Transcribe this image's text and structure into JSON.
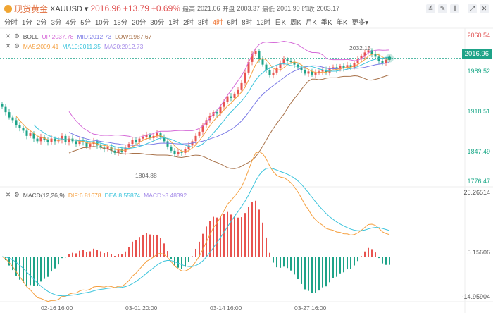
{
  "header": {
    "name": "现货黄金",
    "symbol": "XAUUSD",
    "price": "2016.96",
    "change": "+13.79",
    "change_pct": "+0.69%",
    "high_label": "最高",
    "high": "2021.06",
    "open_label": "开盘",
    "open": "2003.37",
    "low_label": "最低",
    "low": "2001.90",
    "prev_label": "昨收",
    "prev": "2003.17"
  },
  "periods": [
    "分时",
    "1分",
    "2分",
    "3分",
    "4分",
    "5分",
    "10分",
    "15分",
    "20分",
    "30分",
    "1时",
    "2时",
    "3时",
    "4时",
    "6时",
    "8时",
    "12时",
    "日K",
    "周K",
    "月K",
    "季K",
    "年K",
    "更多"
  ],
  "active_period": "4时",
  "toolbar": [
    "line-tool-icon",
    "draw-icon",
    "candle-icon",
    "expand-icon",
    "close-icon"
  ],
  "boll": {
    "label": "BOLL",
    "up": "UP:2037.78",
    "mid": "MID:2012.73",
    "low": "LOW:1987.67"
  },
  "ma": {
    "ma5": "MA5:2009.41",
    "ma10": "MA10:2011.35",
    "ma20": "MA20:2012.73"
  },
  "macd": {
    "label": "MACD(12,26,9)",
    "dif": "DIF:6.81678",
    "dea": "DEA:8.55874",
    "macd": "MACD:-3.48392"
  },
  "price_axis": [
    "2060.54",
    "2016.96",
    "1989.52",
    "1918.51",
    "1847.49",
    "1776.47"
  ],
  "macd_axis": [
    "25.26514",
    "5.15606",
    "-14.95904"
  ],
  "annotations": {
    "high": "2032.13",
    "low": "1804.88"
  },
  "dates": [
    "02-16 16:00",
    "03-01 20:00",
    "03-14 16:00",
    "03-27 16:00"
  ],
  "colors": {
    "up": "#e8534f",
    "down": "#1ea388",
    "boll_up": "#d56ad8",
    "boll_mid": "#7a7ae6",
    "boll_low": "#a8724a",
    "ma5": "#f5a040",
    "ma10": "#3cc4dc",
    "ma20": "#a48ae8"
  },
  "chart_data": {
    "type": "candlestick",
    "closes": [
      1925,
      1915,
      1905,
      1900,
      1890,
      1885,
      1880,
      1870,
      1875,
      1865,
      1860,
      1868,
      1862,
      1858,
      1865,
      1860,
      1862,
      1870,
      1858,
      1865,
      1860,
      1855,
      1862,
      1858,
      1850,
      1855,
      1860,
      1852,
      1848,
      1845,
      1850,
      1842,
      1838,
      1845,
      1840,
      1848,
      1855,
      1862,
      1858,
      1865,
      1868,
      1872,
      1866,
      1870,
      1875,
      1868,
      1860,
      1850,
      1842,
      1836,
      1840,
      1838,
      1845,
      1852,
      1860,
      1870,
      1878,
      1890,
      1900,
      1908,
      1915,
      1912,
      1925,
      1935,
      1945,
      1942,
      1950,
      1958,
      1970,
      1990,
      2010,
      2025,
      2030,
      2015,
      2005,
      1995,
      1985,
      1990,
      1998,
      2008,
      2015,
      2012,
      2010,
      2005,
      2000,
      1995,
      1988,
      1992,
      1986,
      1990,
      1992,
      1995,
      1990,
      1998,
      2000,
      1996,
      2002,
      1998,
      2004,
      2000,
      2008,
      2015,
      2022,
      2028,
      2032,
      2025,
      2020,
      2012,
      2008,
      2014,
      2016.96
    ],
    "ylim": [
      1776.47,
      2060.54
    ],
    "macd_ylim": [
      -14.95904,
      25.26514
    ]
  }
}
